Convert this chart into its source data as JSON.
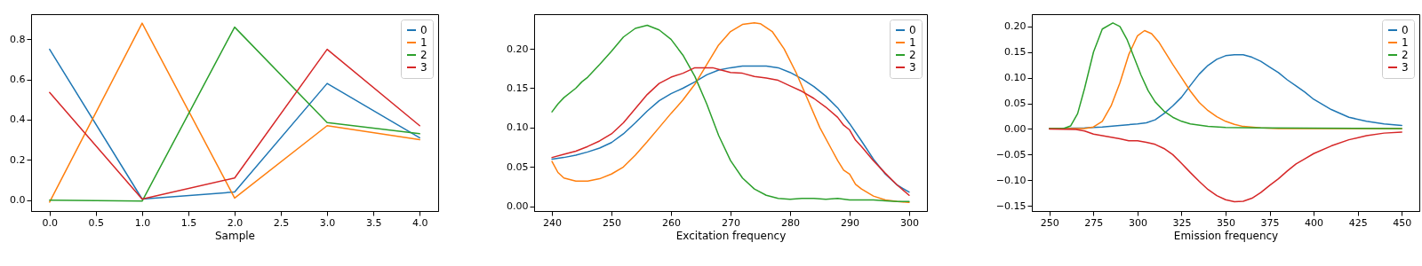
{
  "chart_data": [
    {
      "type": "line",
      "xlabel": "Sample",
      "legend": "top right",
      "xlim": [
        -0.2,
        4.2
      ],
      "ylim": [
        -0.0545,
        0.9245
      ],
      "xticks": [
        {
          "value": 0,
          "label": "0.0"
        },
        {
          "value": 0.5,
          "label": "0.5"
        },
        {
          "value": 1,
          "label": "1.0"
        },
        {
          "value": 1.5,
          "label": "1.5"
        },
        {
          "value": 2,
          "label": "2.0"
        },
        {
          "value": 2.5,
          "label": "2.5"
        },
        {
          "value": 3,
          "label": "3.0"
        },
        {
          "value": 3.5,
          "label": "3.5"
        },
        {
          "value": 4,
          "label": "4.0"
        }
      ],
      "yticks": [
        {
          "value": 0,
          "label": "0.0"
        },
        {
          "value": 0.2,
          "label": "0.2"
        },
        {
          "value": 0.4,
          "label": "0.4"
        },
        {
          "value": 0.6,
          "label": "0.6"
        },
        {
          "value": 0.8,
          "label": "0.8"
        }
      ],
      "x": [
        0,
        1,
        2,
        3,
        4
      ],
      "series": [
        {
          "name": "0",
          "color": "#1f77b4",
          "values": [
            0.75,
            0.005,
            0.04,
            0.58,
            0.31
          ]
        },
        {
          "name": "1",
          "color": "#ff7f0e",
          "values": [
            -0.01,
            0.88,
            0.01,
            0.37,
            0.3
          ]
        },
        {
          "name": "2",
          "color": "#2ca02c",
          "values": [
            0.0,
            -0.005,
            0.86,
            0.385,
            0.33
          ]
        },
        {
          "name": "3",
          "color": "#d62728",
          "values": [
            0.535,
            0.005,
            0.11,
            0.75,
            0.37
          ]
        }
      ]
    },
    {
      "type": "line",
      "xlabel": "Excitation frequency",
      "legend": "top right",
      "xlim": [
        237,
        303
      ],
      "ylim": [
        -0.006,
        0.244
      ],
      "xticks": [
        240,
        250,
        260,
        270,
        280,
        290,
        300
      ],
      "yticks": [
        {
          "value": 0,
          "label": "0.00"
        },
        {
          "value": 0.05,
          "label": "0.05"
        },
        {
          "value": 0.1,
          "label": "0.10"
        },
        {
          "value": 0.15,
          "label": "0.15"
        },
        {
          "value": 0.2,
          "label": "0.20"
        }
      ],
      "series": [
        {
          "name": "0",
          "color": "#1f77b4",
          "x": [
            240,
            242,
            244,
            246,
            248,
            250,
            252,
            254,
            256,
            258,
            260,
            262,
            264,
            266,
            268,
            270,
            272,
            274,
            276,
            278,
            280,
            282,
            284,
            286,
            288,
            290,
            292,
            294,
            296,
            298,
            300
          ],
          "values": [
            0.06,
            0.062,
            0.065,
            0.069,
            0.074,
            0.081,
            0.092,
            0.106,
            0.121,
            0.134,
            0.143,
            0.15,
            0.158,
            0.167,
            0.173,
            0.176,
            0.178,
            0.178,
            0.178,
            0.176,
            0.17,
            0.162,
            0.152,
            0.14,
            0.125,
            0.105,
            0.083,
            0.06,
            0.041,
            0.027,
            0.018
          ]
        },
        {
          "name": "1",
          "color": "#ff7f0e",
          "x": [
            240,
            241,
            242,
            244,
            246,
            248,
            250,
            252,
            254,
            256,
            258,
            260,
            262,
            264,
            266,
            268,
            270,
            272,
            274,
            275,
            277,
            279,
            281,
            283,
            285,
            287,
            288,
            289,
            290,
            291,
            292,
            294,
            296,
            298,
            300
          ],
          "values": [
            0.057,
            0.043,
            0.036,
            0.032,
            0.032,
            0.035,
            0.041,
            0.05,
            0.065,
            0.082,
            0.1,
            0.118,
            0.135,
            0.155,
            0.18,
            0.205,
            0.222,
            0.231,
            0.233,
            0.232,
            0.222,
            0.2,
            0.17,
            0.135,
            0.1,
            0.072,
            0.058,
            0.046,
            0.041,
            0.028,
            0.022,
            0.013,
            0.008,
            0.006,
            0.005
          ]
        },
        {
          "name": "2",
          "color": "#2ca02c",
          "x": [
            240,
            241,
            242,
            244,
            245,
            246,
            248,
            250,
            252,
            254,
            256,
            258,
            260,
            262,
            264,
            266,
            268,
            270,
            272,
            274,
            276,
            278,
            280,
            282,
            284,
            286,
            288,
            290,
            292,
            294,
            296,
            298,
            300
          ],
          "values": [
            0.12,
            0.13,
            0.138,
            0.15,
            0.158,
            0.164,
            0.18,
            0.197,
            0.215,
            0.226,
            0.23,
            0.224,
            0.212,
            0.192,
            0.165,
            0.13,
            0.09,
            0.058,
            0.036,
            0.022,
            0.014,
            0.01,
            0.009,
            0.01,
            0.01,
            0.009,
            0.01,
            0.008,
            0.008,
            0.008,
            0.007,
            0.006,
            0.006
          ]
        },
        {
          "name": "3",
          "color": "#d62728",
          "x": [
            240,
            242,
            244,
            246,
            248,
            250,
            252,
            254,
            256,
            258,
            260,
            262,
            264,
            266,
            267,
            268,
            270,
            272,
            274,
            276,
            278,
            280,
            282,
            284,
            286,
            288,
            289,
            290,
            291,
            292,
            294,
            296,
            298,
            300
          ],
          "values": [
            0.062,
            0.066,
            0.07,
            0.076,
            0.083,
            0.092,
            0.106,
            0.124,
            0.142,
            0.156,
            0.164,
            0.169,
            0.176,
            0.176,
            0.176,
            0.174,
            0.17,
            0.169,
            0.165,
            0.163,
            0.16,
            0.153,
            0.146,
            0.137,
            0.126,
            0.113,
            0.103,
            0.097,
            0.084,
            0.076,
            0.058,
            0.042,
            0.027,
            0.014
          ]
        }
      ]
    },
    {
      "type": "line",
      "xlabel": "Emission frequency",
      "legend": "top right",
      "xlim": [
        240,
        460
      ],
      "ylim": [
        -0.16,
        0.224
      ],
      "xticks": [
        250,
        275,
        300,
        325,
        350,
        375,
        400,
        425,
        450
      ],
      "yticks": [
        {
          "value": -0.15,
          "label": "−0.15"
        },
        {
          "value": -0.1,
          "label": "−0.10"
        },
        {
          "value": -0.05,
          "label": "−0.05"
        },
        {
          "value": 0,
          "label": "0.00"
        },
        {
          "value": 0.05,
          "label": "0.05"
        },
        {
          "value": 0.1,
          "label": "0.10"
        },
        {
          "value": 0.15,
          "label": "0.15"
        },
        {
          "value": 0.2,
          "label": "0.20"
        }
      ],
      "series": [
        {
          "name": "0",
          "color": "#1f77b4",
          "x": [
            250,
            270,
            280,
            290,
            300,
            305,
            310,
            315,
            320,
            325,
            330,
            335,
            340,
            345,
            350,
            355,
            360,
            365,
            370,
            375,
            380,
            385,
            390,
            395,
            400,
            410,
            420,
            430,
            440,
            450
          ],
          "values": [
            0.001,
            0.002,
            0.004,
            0.007,
            0.01,
            0.012,
            0.018,
            0.03,
            0.045,
            0.062,
            0.085,
            0.107,
            0.124,
            0.136,
            0.143,
            0.145,
            0.145,
            0.14,
            0.132,
            0.121,
            0.11,
            0.096,
            0.084,
            0.072,
            0.058,
            0.038,
            0.023,
            0.015,
            0.01,
            0.007
          ]
        },
        {
          "name": "1",
          "color": "#ff7f0e",
          "x": [
            250,
            270,
            275,
            280,
            285,
            290,
            295,
            300,
            304,
            308,
            312,
            316,
            320,
            325,
            330,
            335,
            340,
            345,
            350,
            355,
            360,
            370,
            380,
            450
          ],
          "values": [
            0.001,
            0.001,
            0.004,
            0.015,
            0.045,
            0.09,
            0.145,
            0.182,
            0.192,
            0.186,
            0.17,
            0.148,
            0.126,
            0.1,
            0.074,
            0.052,
            0.036,
            0.024,
            0.015,
            0.009,
            0.005,
            0.002,
            0.001,
            0.001
          ]
        },
        {
          "name": "2",
          "color": "#2ca02c",
          "x": [
            250,
            258,
            262,
            266,
            270,
            275,
            280,
            286,
            290,
            294,
            298,
            302,
            306,
            310,
            315,
            320,
            325,
            330,
            340,
            350,
            370,
            450
          ],
          "values": [
            0.001,
            0.001,
            0.006,
            0.03,
            0.08,
            0.15,
            0.195,
            0.207,
            0.2,
            0.175,
            0.14,
            0.105,
            0.075,
            0.053,
            0.035,
            0.023,
            0.015,
            0.01,
            0.005,
            0.003,
            0.002,
            0.001
          ]
        },
        {
          "name": "3",
          "color": "#d62728",
          "x": [
            250,
            265,
            270,
            275,
            280,
            285,
            290,
            295,
            300,
            305,
            310,
            315,
            320,
            325,
            330,
            335,
            340,
            345,
            350,
            355,
            360,
            365,
            370,
            375,
            380,
            385,
            390,
            395,
            400,
            410,
            420,
            430,
            440,
            450
          ],
          "values": [
            0,
            -0.001,
            -0.004,
            -0.01,
            -0.013,
            -0.016,
            -0.019,
            -0.023,
            -0.023,
            -0.026,
            -0.03,
            -0.038,
            -0.05,
            -0.067,
            -0.085,
            -0.102,
            -0.118,
            -0.13,
            -0.138,
            -0.142,
            -0.141,
            -0.135,
            -0.124,
            -0.11,
            -0.097,
            -0.082,
            -0.068,
            -0.058,
            -0.048,
            -0.033,
            -0.021,
            -0.013,
            -0.008,
            -0.006
          ]
        }
      ]
    }
  ]
}
